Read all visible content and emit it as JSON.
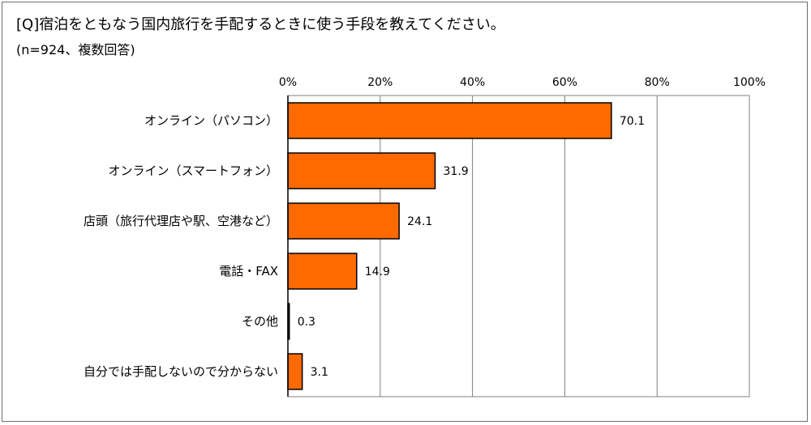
{
  "question": "[Q]宿泊をともなう国内旅行を手配するときに使う手段を教えてください。",
  "note": "(n=924、複数回答)",
  "chart_data": {
    "type": "bar",
    "orientation": "horizontal",
    "categories": [
      "オンライン（パソコン）",
      "オンライン（スマートフォン）",
      "店頭（旅行代理店や駅、空港など）",
      "電話・FAX",
      "その他",
      "自分では手配しないので分からない"
    ],
    "values": [
      70.1,
      31.9,
      24.1,
      14.9,
      0.3,
      3.1
    ],
    "value_labels": [
      "70.1",
      "31.9",
      "24.1",
      "14.9",
      "0.3",
      "3.1"
    ],
    "xlim": [
      0,
      100
    ],
    "ticks": [
      0,
      20,
      40,
      60,
      80,
      100
    ],
    "tick_labels": [
      "0%",
      "20%",
      "40%",
      "60%",
      "80%",
      "100%"
    ],
    "grid": true,
    "colors": {
      "bar": "#ff6a00",
      "bar_edge": "#000000",
      "grid": "#808080",
      "axis": "#000000"
    }
  }
}
